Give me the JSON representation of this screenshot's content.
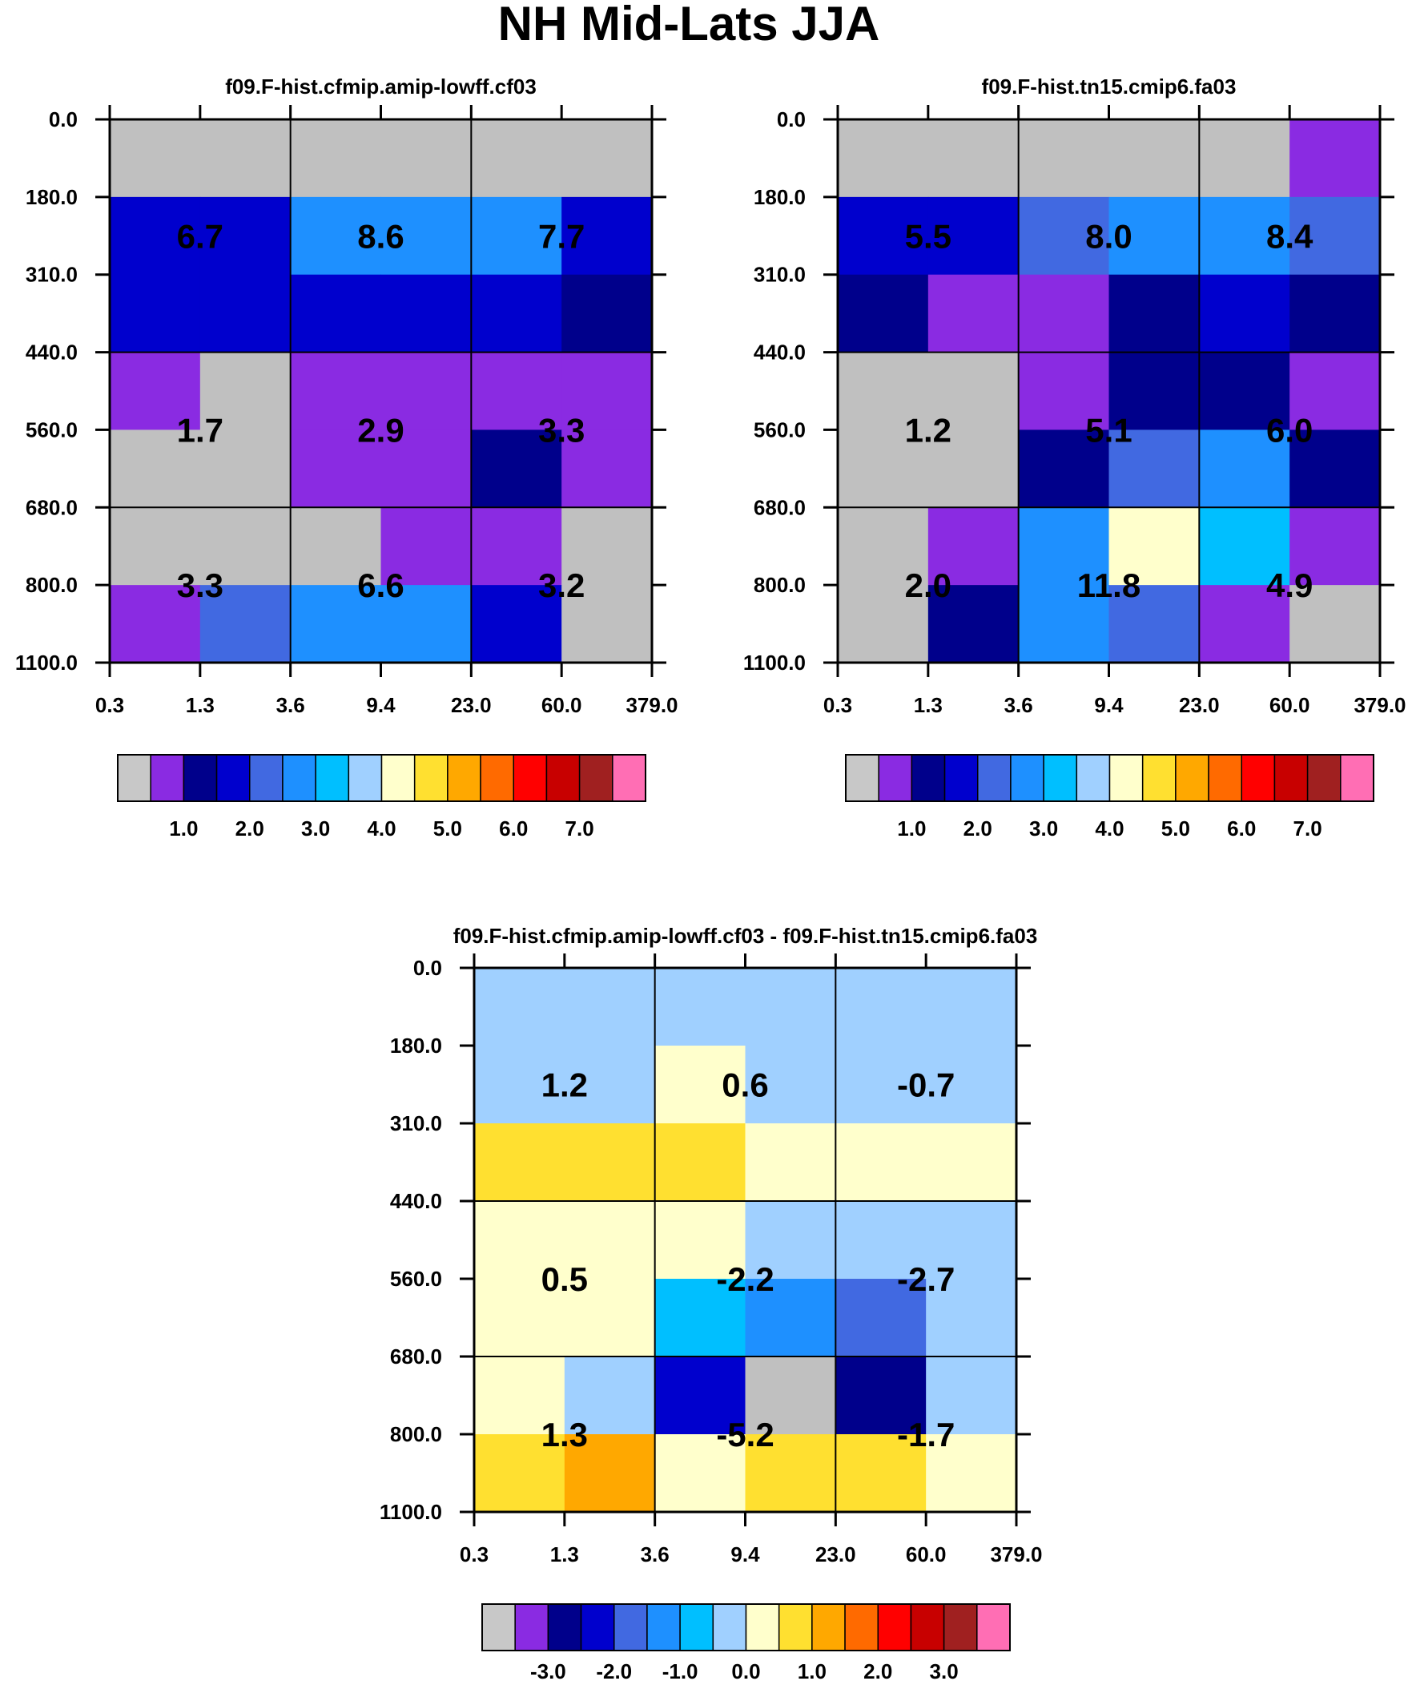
{
  "title": "NH Mid-Lats JJA",
  "chart_data": [
    {
      "type": "heatmap",
      "title": "f09.F-hist.cfmip.amip-lowff.cf03",
      "x_tick_labels": [
        "0.3",
        "1.3",
        "3.6",
        "9.4",
        "23.0",
        "60.0",
        "379.0"
      ],
      "y_tick_labels": [
        "0.0",
        "180.0",
        "310.0",
        "440.0",
        "560.0",
        "680.0",
        "800.0",
        "1100.0"
      ],
      "fine_colors": [
        [
          "#C0C0C0",
          "#C0C0C0",
          "#C0C0C0",
          "#C0C0C0",
          "#C0C0C0",
          "#C0C0C0"
        ],
        [
          "#0000CD",
          "#0000CD",
          "#1E90FF",
          "#1E90FF",
          "#1E90FF",
          "#0000CD"
        ],
        [
          "#0000CD",
          "#0000CD",
          "#0000CD",
          "#0000CD",
          "#0000CD",
          "#00008B"
        ],
        [
          "#8A2BE2",
          "#C0C0C0",
          "#8A2BE2",
          "#8A2BE2",
          "#8A2BE2",
          "#8A2BE2"
        ],
        [
          "#C0C0C0",
          "#C0C0C0",
          "#8A2BE2",
          "#8A2BE2",
          "#00008B",
          "#8A2BE2"
        ],
        [
          "#C0C0C0",
          "#C0C0C0",
          "#C0C0C0",
          "#8A2BE2",
          "#8A2BE2",
          "#C0C0C0"
        ],
        [
          "#8A2BE2",
          "#4169E1",
          "#1E90FF",
          "#1E90FF",
          "#0000CD",
          "#C0C0C0"
        ]
      ],
      "cell_values": [
        [
          "6.7",
          "8.6",
          "7.7"
        ],
        [
          "1.7",
          "2.9",
          "3.3"
        ],
        [
          "3.3",
          "6.6",
          "3.2"
        ]
      ],
      "colorbar": {
        "colors": [
          "#C8C8C8",
          "#8A2BE2",
          "#00008B",
          "#0000CD",
          "#4169E1",
          "#1E90FF",
          "#00BFFF",
          "#A0D0FF",
          "#FFFFCC",
          "#FFE030",
          "#FFA800",
          "#FF6A00",
          "#FF0000",
          "#C80000",
          "#A02020",
          "#FF6EB4"
        ],
        "labels": [
          "1.0",
          "2.0",
          "3.0",
          "4.0",
          "5.0",
          "6.0",
          "7.0"
        ]
      }
    },
    {
      "type": "heatmap",
      "title": "f09.F-hist.tn15.cmip6.fa03",
      "x_tick_labels": [
        "0.3",
        "1.3",
        "3.6",
        "9.4",
        "23.0",
        "60.0",
        "379.0"
      ],
      "y_tick_labels": [
        "0.0",
        "180.0",
        "310.0",
        "440.0",
        "560.0",
        "680.0",
        "800.0",
        "1100.0"
      ],
      "fine_colors": [
        [
          "#C0C0C0",
          "#C0C0C0",
          "#C0C0C0",
          "#C0C0C0",
          "#C0C0C0",
          "#8A2BE2"
        ],
        [
          "#0000CD",
          "#0000CD",
          "#4169E1",
          "#1E90FF",
          "#1E90FF",
          "#4169E1"
        ],
        [
          "#00008B",
          "#8A2BE2",
          "#8A2BE2",
          "#00008B",
          "#0000CD",
          "#00008B"
        ],
        [
          "#C0C0C0",
          "#C0C0C0",
          "#8A2BE2",
          "#00008B",
          "#00008B",
          "#8A2BE2"
        ],
        [
          "#C0C0C0",
          "#C0C0C0",
          "#00008B",
          "#4169E1",
          "#1E90FF",
          "#00008B"
        ],
        [
          "#C0C0C0",
          "#8A2BE2",
          "#1E90FF",
          "#FFFFCC",
          "#00BFFF",
          "#8A2BE2"
        ],
        [
          "#C0C0C0",
          "#00008B",
          "#1E90FF",
          "#4169E1",
          "#8A2BE2",
          "#C0C0C0"
        ]
      ],
      "cell_values": [
        [
          "5.5",
          "8.0",
          "8.4"
        ],
        [
          "1.2",
          "5.1",
          "6.0"
        ],
        [
          "2.0",
          "11.8",
          "4.9"
        ]
      ],
      "colorbar": {
        "colors": [
          "#C8C8C8",
          "#8A2BE2",
          "#00008B",
          "#0000CD",
          "#4169E1",
          "#1E90FF",
          "#00BFFF",
          "#A0D0FF",
          "#FFFFCC",
          "#FFE030",
          "#FFA800",
          "#FF6A00",
          "#FF0000",
          "#C80000",
          "#A02020",
          "#FF6EB4"
        ],
        "labels": [
          "1.0",
          "2.0",
          "3.0",
          "4.0",
          "5.0",
          "6.0",
          "7.0"
        ]
      }
    },
    {
      "type": "heatmap",
      "title": "f09.F-hist.cfmip.amip-lowff.cf03 - f09.F-hist.tn15.cmip6.fa03",
      "x_tick_labels": [
        "0.3",
        "1.3",
        "3.6",
        "9.4",
        "23.0",
        "60.0",
        "379.0"
      ],
      "y_tick_labels": [
        "0.0",
        "180.0",
        "310.0",
        "440.0",
        "560.0",
        "680.0",
        "800.0",
        "1100.0"
      ],
      "fine_colors": [
        [
          "#A0D0FF",
          "#A0D0FF",
          "#A0D0FF",
          "#A0D0FF",
          "#A0D0FF",
          "#A0D0FF"
        ],
        [
          "#A0D0FF",
          "#A0D0FF",
          "#FFFFCC",
          "#A0D0FF",
          "#A0D0FF",
          "#A0D0FF"
        ],
        [
          "#FFE030",
          "#FFE030",
          "#FFE030",
          "#FFFFCC",
          "#FFFFCC",
          "#FFFFCC"
        ],
        [
          "#FFFFCC",
          "#FFFFCC",
          "#FFFFCC",
          "#A0D0FF",
          "#A0D0FF",
          "#A0D0FF"
        ],
        [
          "#FFFFCC",
          "#FFFFCC",
          "#00BFFF",
          "#1E90FF",
          "#4169E1",
          "#A0D0FF"
        ],
        [
          "#FFFFCC",
          "#A0D0FF",
          "#0000CD",
          "#C0C0C0",
          "#00008B",
          "#A0D0FF"
        ],
        [
          "#FFE030",
          "#FFA800",
          "#FFFFCC",
          "#FFE030",
          "#FFE030",
          "#FFFFCC"
        ]
      ],
      "cell_values": [
        [
          "1.2",
          "0.6",
          "-0.7"
        ],
        [
          "0.5",
          "-2.2",
          "-2.7"
        ],
        [
          "1.3",
          "-5.2",
          "-1.7"
        ]
      ],
      "colorbar": {
        "colors": [
          "#C8C8C8",
          "#8A2BE2",
          "#00008B",
          "#0000CD",
          "#4169E1",
          "#1E90FF",
          "#00BFFF",
          "#A0D0FF",
          "#FFFFCC",
          "#FFE030",
          "#FFA800",
          "#FF6A00",
          "#FF0000",
          "#C80000",
          "#A02020",
          "#FF6EB4"
        ],
        "labels": [
          "-3.0",
          "-2.0",
          "-1.0",
          "0.0",
          "1.0",
          "2.0",
          "3.0"
        ]
      }
    }
  ]
}
